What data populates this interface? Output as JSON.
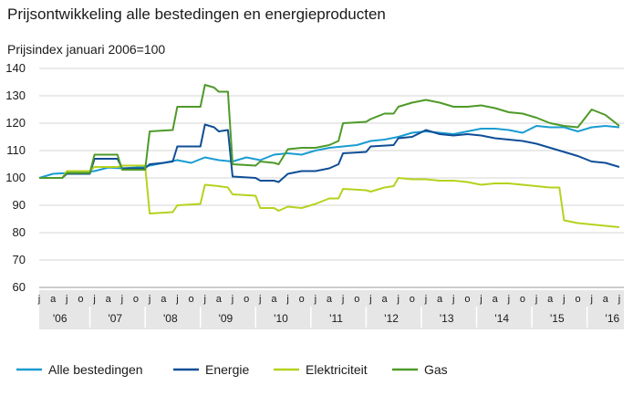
{
  "chart_data": {
    "type": "line",
    "title": "Prijsontwikkeling alle bestedingen en energieproducten",
    "ylabel": "Prijsindex januari 2006=100",
    "xlabel": "",
    "ylim": [
      60,
      140
    ],
    "yticks": [
      60,
      70,
      80,
      90,
      100,
      110,
      120,
      130,
      140
    ],
    "grid": "horizontal",
    "legend_position": "bottom",
    "month_tick_labels": [
      "j",
      "a",
      "j",
      "o",
      "j",
      "a",
      "j",
      "o",
      "j",
      "a",
      "j",
      "o",
      "j",
      "a",
      "j",
      "o",
      "j",
      "a",
      "j",
      "o",
      "j",
      "a",
      "j",
      "o",
      "j",
      "a",
      "j",
      "o",
      "j",
      "a",
      "j",
      "o",
      "j",
      "a",
      "j",
      "o",
      "j",
      "a",
      "j",
      "o",
      "j",
      "a",
      "j"
    ],
    "year_labels": [
      {
        "label": "'06",
        "quarter_index": 1.5
      },
      {
        "label": "'07",
        "quarter_index": 5.5
      },
      {
        "label": "'08",
        "quarter_index": 9.5
      },
      {
        "label": "'09",
        "quarter_index": 13.5
      },
      {
        "label": "'10",
        "quarter_index": 17.5
      },
      {
        "label": "'11",
        "quarter_index": 21.5
      },
      {
        "label": "'12",
        "quarter_index": 25.5
      },
      {
        "label": "'13",
        "quarter_index": 29.5
      },
      {
        "label": "'14",
        "quarter_index": 33.5
      },
      {
        "label": "'15",
        "quarter_index": 37.5
      },
      {
        "label": "'16",
        "quarter_index": 41.5
      }
    ],
    "x_start": "2006-01",
    "x_months": 127,
    "series": [
      {
        "name": "Alle bestedingen",
        "color": "#1a9cd2",
        "points": [
          [
            0,
            100
          ],
          [
            3,
            101.5
          ],
          [
            6,
            101.8
          ],
          [
            9,
            102
          ],
          [
            12,
            102.5
          ],
          [
            15,
            103.8
          ],
          [
            18,
            103.5
          ],
          [
            21,
            103.8
          ],
          [
            24,
            104.5
          ],
          [
            27,
            105.5
          ],
          [
            30,
            106.5
          ],
          [
            33,
            105.5
          ],
          [
            36,
            107.5
          ],
          [
            39,
            106.5
          ],
          [
            42,
            106
          ],
          [
            45,
            107.5
          ],
          [
            48,
            106.5
          ],
          [
            51,
            108.5
          ],
          [
            54,
            109
          ],
          [
            57,
            108.5
          ],
          [
            60,
            110
          ],
          [
            63,
            111
          ],
          [
            66,
            111.5
          ],
          [
            69,
            112
          ],
          [
            72,
            113.5
          ],
          [
            75,
            114
          ],
          [
            78,
            115
          ],
          [
            81,
            116.5
          ],
          [
            84,
            117
          ],
          [
            87,
            116.5
          ],
          [
            90,
            116
          ],
          [
            93,
            117
          ],
          [
            96,
            118
          ],
          [
            99,
            118
          ],
          [
            102,
            117.5
          ],
          [
            105,
            116.5
          ],
          [
            108,
            119
          ],
          [
            111,
            118.5
          ],
          [
            114,
            118.5
          ],
          [
            117,
            117
          ],
          [
            120,
            118.5
          ],
          [
            123,
            119
          ],
          [
            126,
            118.5
          ]
        ]
      },
      {
        "name": "Energie",
        "color": "#0f4e96",
        "points": [
          [
            0,
            100
          ],
          [
            5,
            100
          ],
          [
            6,
            101.5
          ],
          [
            11,
            101.5
          ],
          [
            12,
            107
          ],
          [
            17,
            107
          ],
          [
            18,
            103.5
          ],
          [
            23,
            103.5
          ],
          [
            24,
            105
          ],
          [
            27,
            105.5
          ],
          [
            29,
            106
          ],
          [
            30,
            111.5
          ],
          [
            35,
            111.5
          ],
          [
            36,
            119.5
          ],
          [
            38,
            118.5
          ],
          [
            39,
            117
          ],
          [
            41,
            117.5
          ],
          [
            42,
            100.5
          ],
          [
            47,
            100
          ],
          [
            48,
            99
          ],
          [
            51,
            99
          ],
          [
            52,
            98.5
          ],
          [
            54,
            101.5
          ],
          [
            57,
            102.5
          ],
          [
            60,
            102.5
          ],
          [
            63,
            103.5
          ],
          [
            65,
            105
          ],
          [
            66,
            109
          ],
          [
            71,
            109.5
          ],
          [
            72,
            111.5
          ],
          [
            77,
            112
          ],
          [
            78,
            114.5
          ],
          [
            81,
            115
          ],
          [
            84,
            117.5
          ],
          [
            87,
            116
          ],
          [
            90,
            115.5
          ],
          [
            93,
            116
          ],
          [
            96,
            115.5
          ],
          [
            99,
            114.5
          ],
          [
            102,
            114
          ],
          [
            105,
            113.5
          ],
          [
            108,
            112.5
          ],
          [
            111,
            111
          ],
          [
            114,
            109.5
          ],
          [
            117,
            108
          ],
          [
            120,
            106
          ],
          [
            123,
            105.5
          ],
          [
            126,
            104
          ]
        ]
      },
      {
        "name": "Elektriciteit",
        "color": "#b5d21e",
        "points": [
          [
            0,
            100
          ],
          [
            5,
            100
          ],
          [
            6,
            102.5
          ],
          [
            11,
            102.5
          ],
          [
            12,
            104
          ],
          [
            17,
            104
          ],
          [
            18,
            104.5
          ],
          [
            23,
            104.5
          ],
          [
            24,
            87
          ],
          [
            29,
            87.5
          ],
          [
            30,
            90
          ],
          [
            35,
            90.5
          ],
          [
            36,
            97.5
          ],
          [
            39,
            97
          ],
          [
            41,
            96.5
          ],
          [
            42,
            94
          ],
          [
            47,
            93.5
          ],
          [
            48,
            89
          ],
          [
            51,
            89
          ],
          [
            52,
            88
          ],
          [
            54,
            89.5
          ],
          [
            57,
            89
          ],
          [
            60,
            90.5
          ],
          [
            63,
            92.5
          ],
          [
            65,
            92.5
          ],
          [
            66,
            96
          ],
          [
            71,
            95.5
          ],
          [
            72,
            95
          ],
          [
            75,
            96.5
          ],
          [
            77,
            97
          ],
          [
            78,
            100
          ],
          [
            81,
            99.5
          ],
          [
            84,
            99.5
          ],
          [
            87,
            99
          ],
          [
            90,
            99
          ],
          [
            93,
            98.5
          ],
          [
            96,
            97.5
          ],
          [
            99,
            98
          ],
          [
            102,
            98
          ],
          [
            105,
            97.5
          ],
          [
            108,
            97
          ],
          [
            111,
            96.5
          ],
          [
            113,
            96.5
          ],
          [
            114,
            84.5
          ],
          [
            117,
            83.5
          ],
          [
            120,
            83
          ],
          [
            123,
            82.5
          ],
          [
            126,
            82
          ]
        ]
      },
      {
        "name": "Gas",
        "color": "#4e9a28",
        "points": [
          [
            0,
            100
          ],
          [
            5,
            100
          ],
          [
            6,
            101.8
          ],
          [
            11,
            101.8
          ],
          [
            12,
            108.5
          ],
          [
            17,
            108.5
          ],
          [
            18,
            103
          ],
          [
            23,
            103
          ],
          [
            24,
            117
          ],
          [
            29,
            117.5
          ],
          [
            30,
            126
          ],
          [
            35,
            126
          ],
          [
            36,
            134
          ],
          [
            38,
            133
          ],
          [
            39,
            131.5
          ],
          [
            41,
            131.5
          ],
          [
            42,
            105
          ],
          [
            47,
            104.5
          ],
          [
            48,
            106
          ],
          [
            51,
            105.5
          ],
          [
            52,
            105
          ],
          [
            54,
            110.5
          ],
          [
            57,
            111
          ],
          [
            60,
            111
          ],
          [
            63,
            112
          ],
          [
            65,
            113.5
          ],
          [
            66,
            120
          ],
          [
            71,
            120.5
          ],
          [
            72,
            121.5
          ],
          [
            75,
            123.5
          ],
          [
            77,
            123.5
          ],
          [
            78,
            126
          ],
          [
            81,
            127.5
          ],
          [
            84,
            128.5
          ],
          [
            87,
            127.5
          ],
          [
            90,
            126
          ],
          [
            93,
            126
          ],
          [
            96,
            126.5
          ],
          [
            99,
            125.5
          ],
          [
            102,
            124
          ],
          [
            105,
            123.5
          ],
          [
            108,
            122
          ],
          [
            111,
            120
          ],
          [
            114,
            119
          ],
          [
            117,
            118.5
          ],
          [
            120,
            125
          ],
          [
            123,
            123
          ],
          [
            126,
            119
          ]
        ]
      }
    ]
  }
}
